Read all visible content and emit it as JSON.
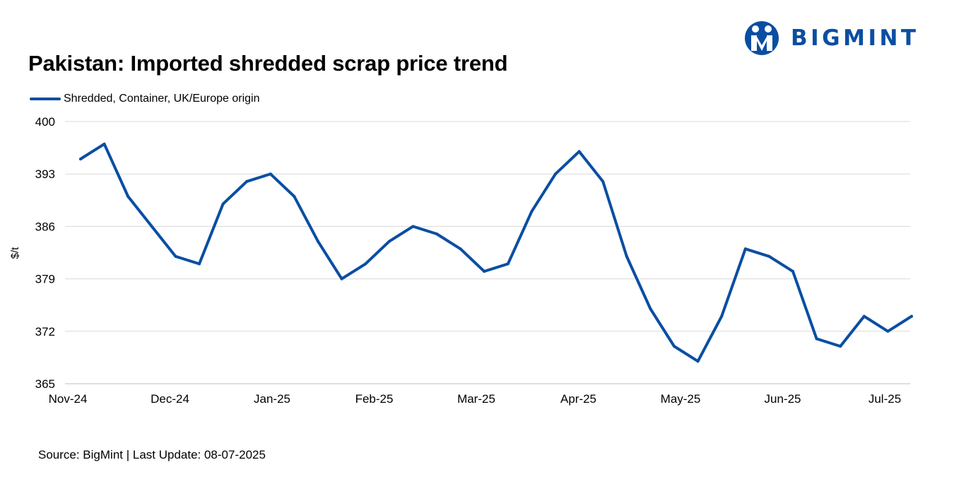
{
  "brand": {
    "name": "BIGMINT",
    "color": "#0a4ea2"
  },
  "footer": {
    "source": "Source: BigMint | Last Update: 08-07-2025"
  },
  "chart_data": {
    "type": "line",
    "title": "Pakistan: Imported shredded scrap price trend",
    "ylabel": "$/t",
    "xlabel": "",
    "ylim": [
      365,
      400
    ],
    "yticks": [
      365,
      372,
      379,
      386,
      393,
      400
    ],
    "grid": true,
    "legend_position": "top-left",
    "x_tick_labels": [
      "Nov-24",
      "Dec-24",
      "Jan-25",
      "Feb-25",
      "Mar-25",
      "Apr-25",
      "May-25",
      "Jun-25",
      "Jul-25"
    ],
    "series": [
      {
        "name": "Shredded, Container, UK/Europe origin",
        "color": "#0a4ea2",
        "values": [
          395,
          397,
          390,
          386,
          382,
          381,
          389,
          392,
          393,
          390,
          384,
          379,
          381,
          384,
          386,
          385,
          383,
          380,
          381,
          388,
          393,
          396,
          392,
          382,
          375,
          370,
          368,
          374,
          383,
          382,
          380,
          371,
          370,
          374,
          372,
          374
        ]
      }
    ]
  }
}
